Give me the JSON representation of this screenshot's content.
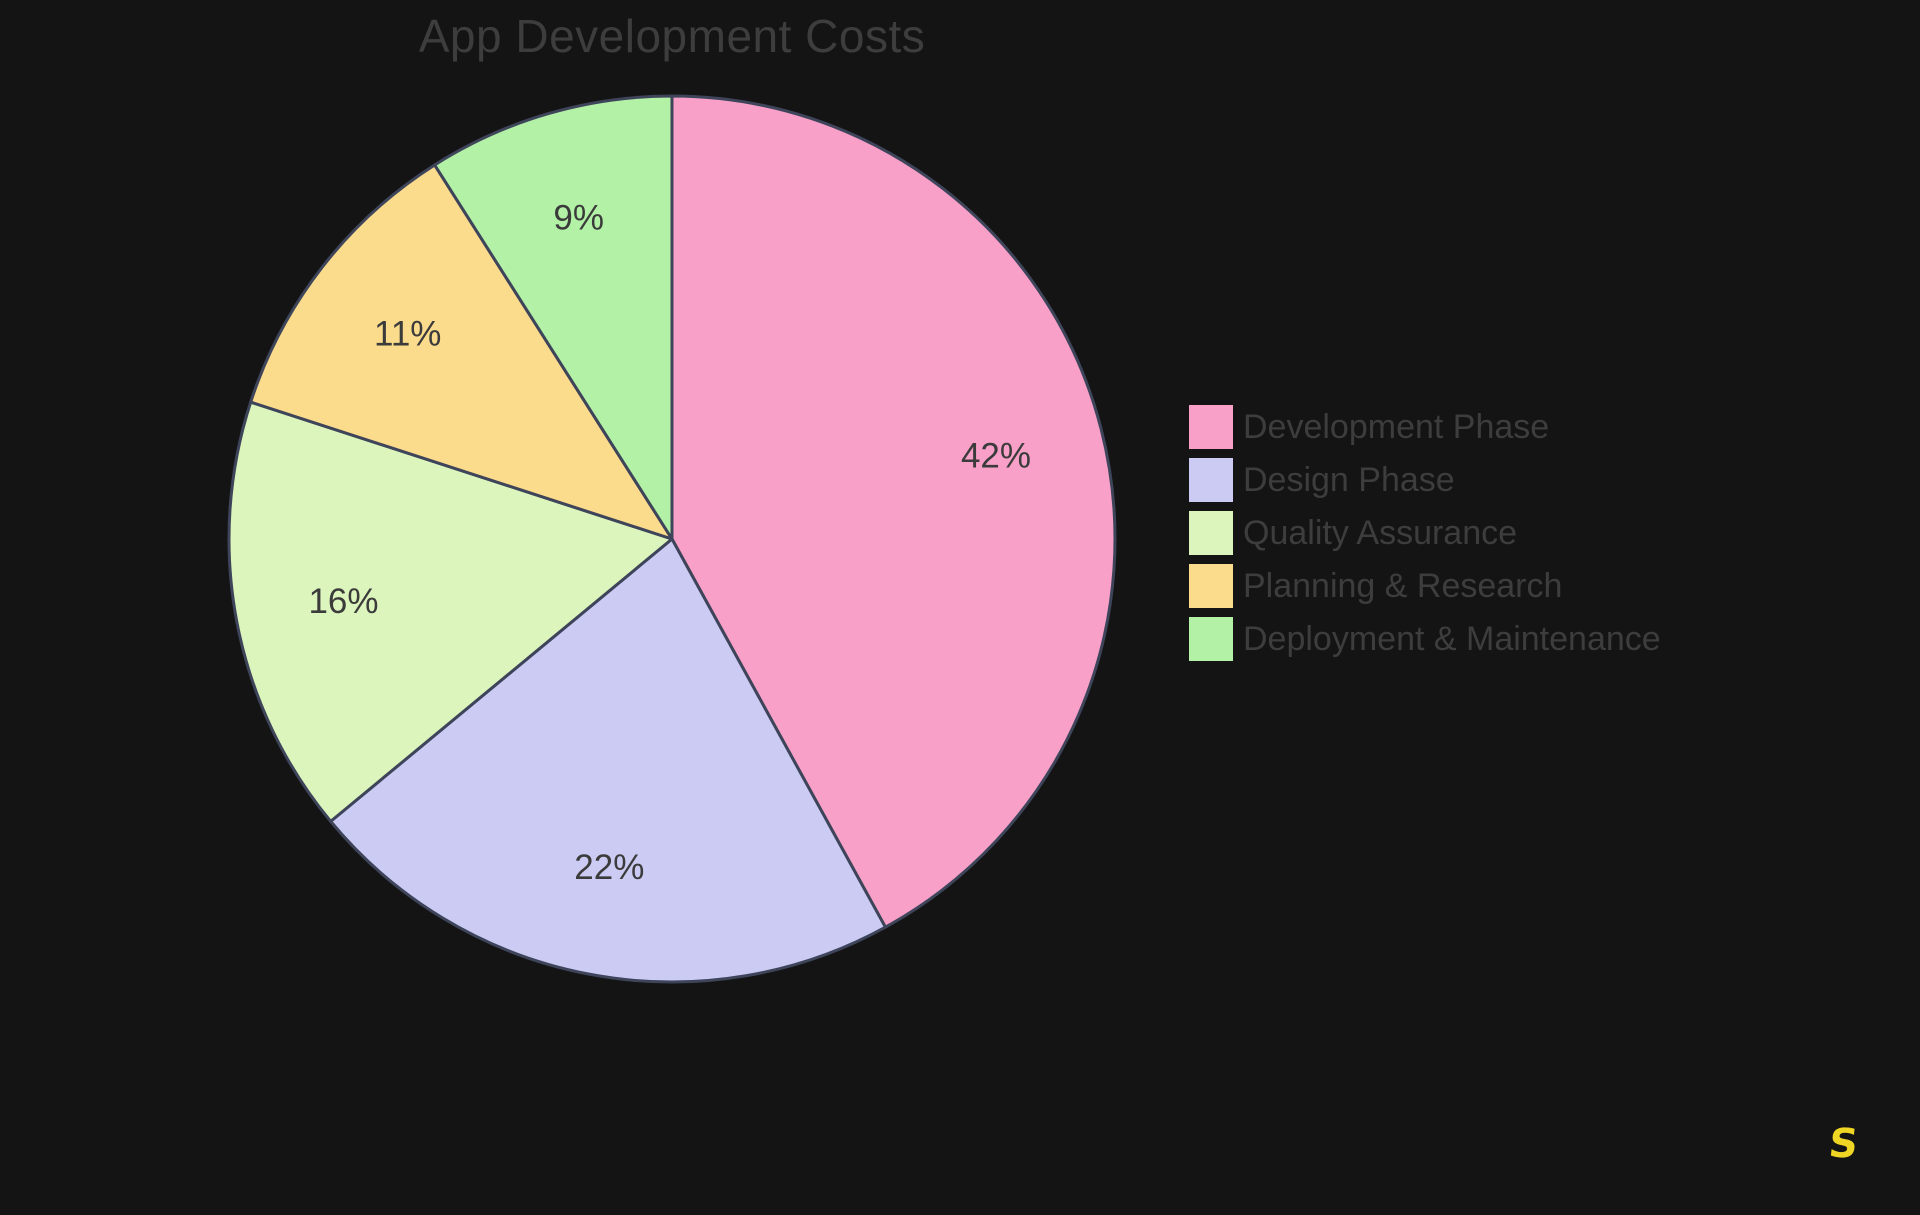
{
  "page": {
    "background": "#141414"
  },
  "title": {
    "text": "App Development Costs",
    "color": "#3d3d3d"
  },
  "chart_data": {
    "type": "pie",
    "title": "App Development Costs",
    "unit": "%",
    "direction": "clockwise",
    "start_angle_deg": -90,
    "categories": [
      "Development Phase",
      "Design Phase",
      "Quality Assurance",
      "Planning & Research",
      "Deployment & Maintenance"
    ],
    "values": [
      42,
      22,
      16,
      11,
      9
    ],
    "slices": [
      {
        "label": "Development Phase",
        "value": 42,
        "pct_label": "42%",
        "color": "#F9A0C8"
      },
      {
        "label": "Design Phase",
        "value": 22,
        "pct_label": "22%",
        "color": "#CBCBF4"
      },
      {
        "label": "Quality Assurance",
        "value": 16,
        "pct_label": "16%",
        "color": "#DCF5BD"
      },
      {
        "label": "Planning & Research",
        "value": 11,
        "pct_label": "11%",
        "color": "#FBDB8C"
      },
      {
        "label": "Deployment & Maintenance",
        "value": 9,
        "pct_label": "9%",
        "color": "#B3F2A6"
      }
    ],
    "slice_border_color": "#3E4459",
    "slice_label_color": "#3b3b3b",
    "legend_position": "right",
    "legend_text_color": "#3d3d3d"
  },
  "logo": {
    "glyph": "S",
    "color": "#EFD624"
  }
}
